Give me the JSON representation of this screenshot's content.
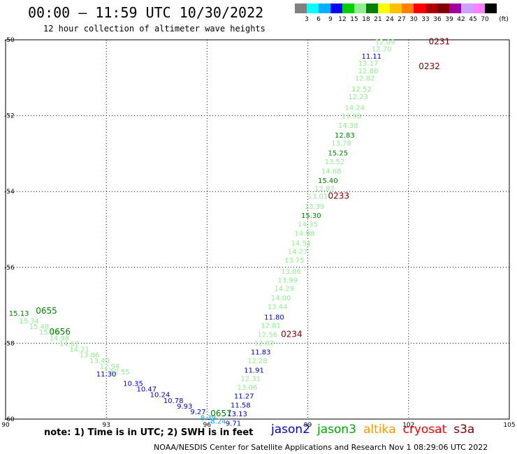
{
  "header": {
    "title": "00:00 – 11:59 UTC 10/30/2022",
    "subtitle": "12 hour collection of altimeter wave heights"
  },
  "colorbar": {
    "unit": "(ft)",
    "colors": [
      "#808080",
      "#00ffff",
      "#00b0ff",
      "#0000ff",
      "#00d000",
      "#90ee90",
      "#008000",
      "#ffff00",
      "#ffc000",
      "#ff8000",
      "#ff0000",
      "#b00000",
      "#800000",
      "#a000a0",
      "#d0a0ff",
      "#ff80ff",
      "#000000"
    ],
    "labels": [
      "3",
      "6",
      "9",
      "12",
      "15",
      "18",
      "21",
      "24",
      "27",
      "30",
      "33",
      "36",
      "39",
      "42",
      "45",
      "70"
    ]
  },
  "note": "note: 1) Time is in UTC; 2) SWH is in feet",
  "legend": [
    {
      "name": "jason2",
      "color": "#0000cc"
    },
    {
      "name": "jason3",
      "color": "#00aa00"
    },
    {
      "name": "altika",
      "color": "#ff9900"
    },
    {
      "name": "cryosat",
      "color": "#ff0000"
    },
    {
      "name": "s3a",
      "color": "#800000"
    }
  ],
  "footer": "NOAA/NESDIS Center for Satellite Applications and Research    Nov  1 08:29:06 UTC 2022",
  "chart_data": {
    "type": "scatter",
    "xlim": [
      90,
      105
    ],
    "ylim": [
      -60,
      -50
    ],
    "x_ticks": [
      90,
      93,
      96,
      99,
      102,
      105
    ],
    "y_ticks": [
      -50,
      -52,
      -54,
      -56,
      -58,
      -60
    ],
    "grid": true,
    "value_labels": [
      {
        "lon": 101.0,
        "lat": -50.05,
        "text": "12.09",
        "color": "#90ee90"
      },
      {
        "lon": 100.9,
        "lat": -50.23,
        "text": "12.70",
        "color": "#90ee90"
      },
      {
        "lon": 100.6,
        "lat": -50.42,
        "text": "11.11",
        "color": "#0000cc"
      },
      {
        "lon": 100.5,
        "lat": -50.61,
        "text": "13.17",
        "color": "#90ee90"
      },
      {
        "lon": 100.5,
        "lat": -50.81,
        "text": "12.80",
        "color": "#90ee90"
      },
      {
        "lon": 100.4,
        "lat": -51.0,
        "text": "12.82",
        "color": "#90ee90"
      },
      {
        "lon": 100.3,
        "lat": -51.29,
        "text": "12.52",
        "color": "#90ee90"
      },
      {
        "lon": 100.2,
        "lat": -51.49,
        "text": "12.23",
        "color": "#90ee90"
      },
      {
        "lon": 100.1,
        "lat": -51.78,
        "text": "14.24",
        "color": "#90ee90"
      },
      {
        "lon": 100.0,
        "lat": -52.0,
        "text": "13.98",
        "color": "#90ee90"
      },
      {
        "lon": 99.9,
        "lat": -52.25,
        "text": "14.38",
        "color": "#90ee90"
      },
      {
        "lon": 99.8,
        "lat": -52.5,
        "text": "12.83",
        "color": "#008000"
      },
      {
        "lon": 99.7,
        "lat": -52.72,
        "text": "13.78",
        "color": "#90ee90"
      },
      {
        "lon": 99.6,
        "lat": -52.97,
        "text": "15.25",
        "color": "#008000"
      },
      {
        "lon": 99.5,
        "lat": -53.2,
        "text": "13.52",
        "color": "#90ee90"
      },
      {
        "lon": 99.4,
        "lat": -53.45,
        "text": "14.68",
        "color": "#90ee90"
      },
      {
        "lon": 99.3,
        "lat": -53.7,
        "text": "15.40",
        "color": "#008000"
      },
      {
        "lon": 99.2,
        "lat": -53.91,
        "text": "12.87",
        "color": "#90ee90"
      },
      {
        "lon": 99.0,
        "lat": -54.12,
        "text": "13.01",
        "color": "#90ee90"
      },
      {
        "lon": 98.9,
        "lat": -54.38,
        "text": "13.39",
        "color": "#90ee90"
      },
      {
        "lon": 98.8,
        "lat": -54.62,
        "text": "15.30",
        "color": "#008000"
      },
      {
        "lon": 98.7,
        "lat": -54.85,
        "text": "14.35",
        "color": "#90ee90"
      },
      {
        "lon": 98.6,
        "lat": -55.09,
        "text": "14.98",
        "color": "#90ee90"
      },
      {
        "lon": 98.5,
        "lat": -55.35,
        "text": "14.51",
        "color": "#90ee90"
      },
      {
        "lon": 98.4,
        "lat": -55.57,
        "text": "14.27",
        "color": "#90ee90"
      },
      {
        "lon": 98.3,
        "lat": -55.8,
        "text": "13.75",
        "color": "#90ee90"
      },
      {
        "lon": 98.2,
        "lat": -56.1,
        "text": "13.86",
        "color": "#90ee90"
      },
      {
        "lon": 98.1,
        "lat": -56.33,
        "text": "13.99",
        "color": "#90ee90"
      },
      {
        "lon": 98.0,
        "lat": -56.55,
        "text": "14.29",
        "color": "#90ee90"
      },
      {
        "lon": 97.9,
        "lat": -56.8,
        "text": "14.00",
        "color": "#90ee90"
      },
      {
        "lon": 97.8,
        "lat": -57.03,
        "text": "13.44",
        "color": "#90ee90"
      },
      {
        "lon": 97.7,
        "lat": -57.3,
        "text": "11.80",
        "color": "#0000cc"
      },
      {
        "lon": 97.6,
        "lat": -57.52,
        "text": "12.81",
        "color": "#90ee90"
      },
      {
        "lon": 97.5,
        "lat": -57.76,
        "text": "12.56",
        "color": "#90ee90"
      },
      {
        "lon": 97.4,
        "lat": -57.98,
        "text": "12.82",
        "color": "#90ee90"
      },
      {
        "lon": 97.3,
        "lat": -58.22,
        "text": "11.83",
        "color": "#0000cc"
      },
      {
        "lon": 97.2,
        "lat": -58.45,
        "text": "12.28",
        "color": "#90ee90"
      },
      {
        "lon": 97.1,
        "lat": -58.7,
        "text": "11.91",
        "color": "#0000cc"
      },
      {
        "lon": 97.0,
        "lat": -58.92,
        "text": "12.31",
        "color": "#90ee90"
      },
      {
        "lon": 96.9,
        "lat": -59.15,
        "text": "13.06",
        "color": "#90ee90"
      },
      {
        "lon": 96.8,
        "lat": -59.38,
        "text": "11.27",
        "color": "#0000cc"
      },
      {
        "lon": 96.7,
        "lat": -59.62,
        "text": "11.58",
        "color": "#0000cc"
      },
      {
        "lon": 96.6,
        "lat": -59.85,
        "text": "13.13",
        "color": "#0000cc"
      },
      {
        "lon": 96.55,
        "lat": -60.1,
        "text": "9.71",
        "color": "#0000cc"
      },
      {
        "lon": 90.1,
        "lat": -57.2,
        "text": "15.13",
        "color": "#008000"
      },
      {
        "lon": 92.7,
        "lat": -58.8,
        "text": "11.30",
        "color": "#0000cc"
      },
      {
        "lon": 93.5,
        "lat": -59.05,
        "text": "10.35",
        "color": "#0000cc"
      }
    ],
    "time_labels": [
      {
        "lon": 102.6,
        "lat": -50.05,
        "text": "0231",
        "color": "#800000"
      },
      {
        "lon": 102.3,
        "lat": -50.7,
        "text": "0232",
        "color": "#800000"
      },
      {
        "lon": 99.6,
        "lat": -54.12,
        "text": "0233",
        "color": "#800000"
      },
      {
        "lon": 98.2,
        "lat": -57.76,
        "text": "0234",
        "color": "#800000"
      },
      {
        "lon": 90.9,
        "lat": -57.15,
        "text": "0655",
        "color": "#008000"
      },
      {
        "lon": 91.3,
        "lat": -57.7,
        "text": "0656",
        "color": "#008000"
      },
      {
        "lon": 96.1,
        "lat": -59.85,
        "text": "0657",
        "color": "#008000"
      }
    ],
    "cluster_labels": [
      {
        "lon": 90.4,
        "lat": -57.4,
        "text": "15.34",
        "color": "#90ee90"
      },
      {
        "lon": 90.7,
        "lat": -57.55,
        "text": "15.48",
        "color": "#90ee90"
      },
      {
        "lon": 91.0,
        "lat": -57.7,
        "text": "15.14",
        "color": "#90ee90"
      },
      {
        "lon": 91.3,
        "lat": -57.85,
        "text": "14.98",
        "color": "#90ee90"
      },
      {
        "lon": 91.6,
        "lat": -58.0,
        "text": "14.62",
        "color": "#90ee90"
      },
      {
        "lon": 91.9,
        "lat": -58.15,
        "text": "14.21",
        "color": "#90ee90"
      },
      {
        "lon": 92.2,
        "lat": -58.3,
        "text": "13.86",
        "color": "#90ee90"
      },
      {
        "lon": 92.5,
        "lat": -58.45,
        "text": "13.40",
        "color": "#90ee90"
      },
      {
        "lon": 92.8,
        "lat": -58.6,
        "text": "12.94",
        "color": "#90ee90"
      },
      {
        "lon": 93.1,
        "lat": -58.75,
        "text": "12.55",
        "color": "#90ee90"
      },
      {
        "lon": 93.9,
        "lat": -59.2,
        "text": "10.47",
        "color": "#0000cc"
      },
      {
        "lon": 94.3,
        "lat": -59.35,
        "text": "10.24",
        "color": "#0000cc"
      },
      {
        "lon": 94.7,
        "lat": -59.5,
        "text": "10.78",
        "color": "#0000cc"
      },
      {
        "lon": 95.1,
        "lat": -59.65,
        "text": "9.93",
        "color": "#0000cc"
      },
      {
        "lon": 95.5,
        "lat": -59.8,
        "text": "9.27",
        "color": "#0000cc"
      },
      {
        "lon": 95.8,
        "lat": -59.95,
        "text": "8.39",
        "color": "#00b0ff"
      },
      {
        "lon": 96.1,
        "lat": -60.05,
        "text": "8.24",
        "color": "#00b0ff"
      }
    ]
  }
}
